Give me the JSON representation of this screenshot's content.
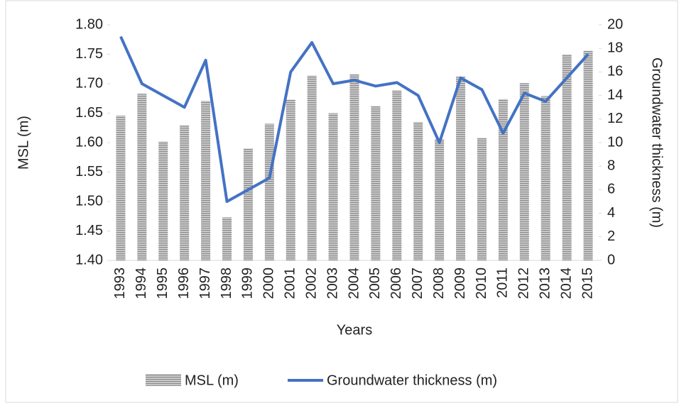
{
  "chart_data": {
    "type": "bar-line",
    "x_label": "Years",
    "y_label": "MSL (m)",
    "y2_label": "Groundwater thickness (m)",
    "categories": [
      "1993",
      "1994",
      "1995",
      "1996",
      "1997",
      "1998",
      "1999",
      "2000",
      "2001",
      "2002",
      "2003",
      "2004",
      "2005",
      "2006",
      "2007",
      "2008",
      "2009",
      "2010",
      "2011",
      "2012",
      "2013",
      "2014",
      "2015"
    ],
    "series": [
      {
        "name": "MSL (m)",
        "type": "bar",
        "color": "#a6a6a6",
        "values": [
          1.646,
          1.683,
          1.602,
          1.629,
          1.671,
          1.473,
          1.59,
          1.632,
          1.673,
          1.714,
          1.65,
          1.716,
          1.662,
          1.689,
          1.635,
          1.606,
          1.712,
          1.608,
          1.674,
          1.701,
          1.679,
          1.75,
          1.756
        ]
      },
      {
        "name": "Groundwater thickness (m)",
        "type": "line",
        "color": "#4472c4",
        "axis": "y2",
        "values": [
          19,
          15,
          14,
          13,
          17,
          5,
          6,
          7,
          16,
          18.5,
          15,
          15.3,
          14.8,
          15.1,
          14,
          10,
          15.5,
          14.5,
          10.8,
          14.2,
          13.5,
          15.5,
          17.5
        ]
      }
    ],
    "ylim": [
      1.4,
      1.8
    ],
    "yticks": [
      {
        "value": 1.4,
        "label": "1.40"
      },
      1.45,
      {
        "value": 1.5,
        "label": "1.50"
      },
      1.55,
      {
        "value": 1.6,
        "label": "1.60"
      },
      1.65,
      {
        "value": 1.7,
        "label": "1.70"
      },
      1.75,
      {
        "value": 1.8,
        "label": "1.80"
      }
    ],
    "y2lim": [
      0,
      20
    ],
    "y2ticks": [
      0,
      2,
      4,
      6,
      8,
      10,
      12,
      14,
      16,
      18,
      20
    ],
    "legend": "bottom"
  }
}
